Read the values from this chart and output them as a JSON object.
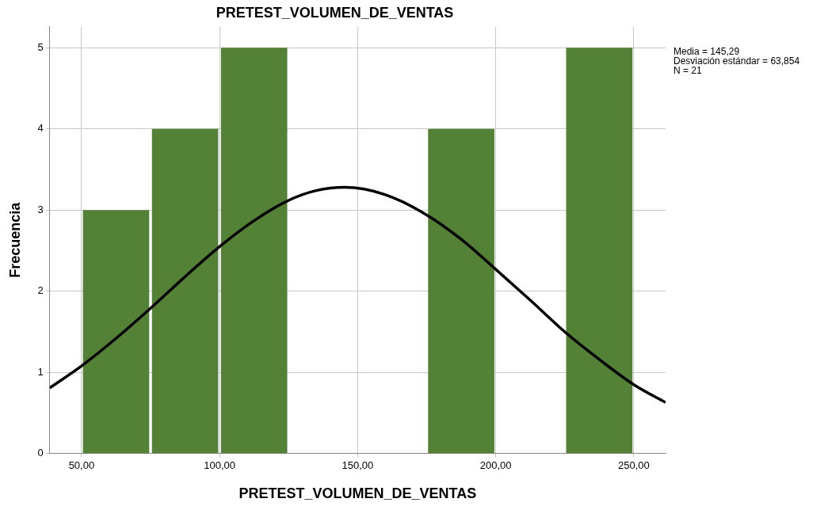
{
  "chart_data": {
    "type": "histogram",
    "title": "PRETEST_VOLUMEN_DE_VENTAS",
    "xlabel": "PRETEST_VOLUMEN_DE_VENTAS",
    "ylabel": "Frecuencia",
    "bins": [
      50,
      75,
      100,
      125,
      150,
      175,
      200,
      225,
      250
    ],
    "values": [
      3,
      4,
      5,
      0,
      0,
      4,
      0,
      5
    ],
    "color": "#538135",
    "series": [
      {
        "type": "line",
        "color": "#000000",
        "x": [
          38.5,
          50,
          62.5,
          75,
          87.5,
          100,
          112.5,
          125,
          135,
          145.29,
          160,
          175,
          187.5,
          200,
          212.5,
          225,
          237.5,
          250,
          261.5
        ],
        "values": [
          0.81,
          1.08,
          1.42,
          1.79,
          2.18,
          2.55,
          2.87,
          3.12,
          3.24,
          3.28,
          3.19,
          2.94,
          2.64,
          2.27,
          1.89,
          1.5,
          1.16,
          0.85,
          0.63
        ]
      }
    ],
    "xlim": [
      38.5,
      261.5
    ],
    "xticks": [
      {
        "value": 50,
        "label": "50,00"
      },
      {
        "value": 100,
        "label": "100,00"
      },
      {
        "value": 150,
        "label": "150,00"
      },
      {
        "value": 200,
        "label": "200,00"
      },
      {
        "value": 250,
        "label": "250,00"
      }
    ],
    "ylim": [
      0,
      5.26
    ],
    "yticks": [
      0,
      1,
      2,
      3,
      4,
      5
    ],
    "grid": true,
    "legend": false,
    "marker": "none",
    "line_style": "solid",
    "annotations": [
      "Media = 145,29",
      "Desviación estándar = 63,854",
      "N = 21"
    ]
  }
}
